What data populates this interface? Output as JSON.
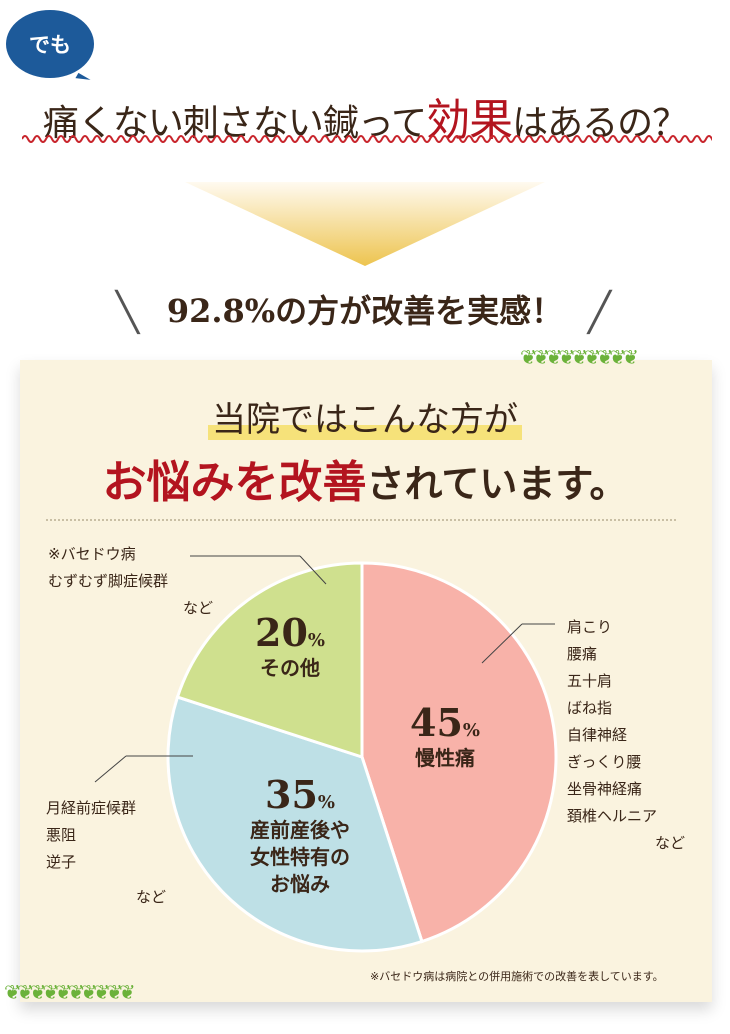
{
  "bubble": "でも",
  "headline": {
    "pre": "痛くない刺さない鍼って",
    "accent": "効果",
    "post": "はあるの？"
  },
  "result": "92.8%の方が改善を実感！",
  "subtitle": {
    "line1": "当院ではこんな方が",
    "line2_accent": "お悩みを改善",
    "line2_post": "されています。"
  },
  "colors": {
    "pink": "#f8b2a9",
    "blue": "#bee0e6",
    "green": "#cfe08e",
    "accent": "#b3141f",
    "text": "#3a2618"
  },
  "chart_data": {
    "type": "pie",
    "start": "top",
    "direction": "clockwise",
    "slices": [
      {
        "label": "慢性痛",
        "value": 45,
        "pct": "45",
        "color": "#f8b2a9",
        "examples": [
          "肩こり",
          "腰痛",
          "五十肩",
          "ばね指",
          "自律神経",
          "ぎっくり腰",
          "坐骨神経痛",
          "頚椎ヘルニア"
        ],
        "etc": "など"
      },
      {
        "label_lines": [
          "産前産後や",
          "女性特有の",
          "お悩み"
        ],
        "value": 35,
        "pct": "35",
        "color": "#bee0e6",
        "examples": [
          "月経前症候群",
          "悪阻",
          "逆子"
        ],
        "etc": "など"
      },
      {
        "label": "その他",
        "value": 20,
        "pct": "20",
        "color": "#cfe08e",
        "examples": [
          "※バセドウ病",
          "むずむず脚症候群"
        ],
        "etc": "など"
      }
    ],
    "unit": "%"
  },
  "note": "※バセドウ病は病院との併用施術での改善を表しています。"
}
